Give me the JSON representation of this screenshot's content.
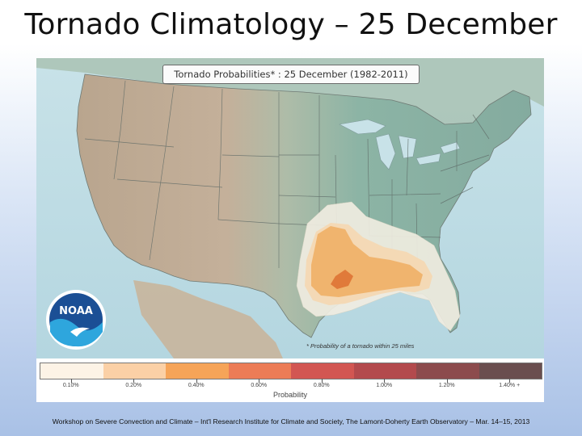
{
  "slide": {
    "title": "Tornado Climatology – 25 December",
    "footer": "Workshop on Severe Convection and Climate – Int'l Research Institute for Climate and Society, The Lamont-Doherty Earth Observatory – Mar. 14–15, 2013"
  },
  "map": {
    "title": "Tornado Probabilities* : 25 December (1982-2011)",
    "footnote": "* Probability of a tornado within 25 miles",
    "logo_text": "NOAA",
    "logo_icon": "noaa-logo-icon"
  },
  "legend": {
    "caption": "Probability",
    "bins": [
      {
        "color": "#fdf3e6",
        "label": "0.10%"
      },
      {
        "color": "#fbd0a6",
        "label": "0.20%"
      },
      {
        "color": "#f6a458",
        "label": "0.40%"
      },
      {
        "color": "#ec7c56",
        "label": "0.60%"
      },
      {
        "color": "#d25652",
        "label": "0.80%"
      },
      {
        "color": "#b34a4d",
        "label": "1.00%"
      },
      {
        "color": "#8c4b4d",
        "label": "1.20%"
      },
      {
        "color": "#6a4e4f",
        "label": "1.40% +"
      }
    ]
  }
}
